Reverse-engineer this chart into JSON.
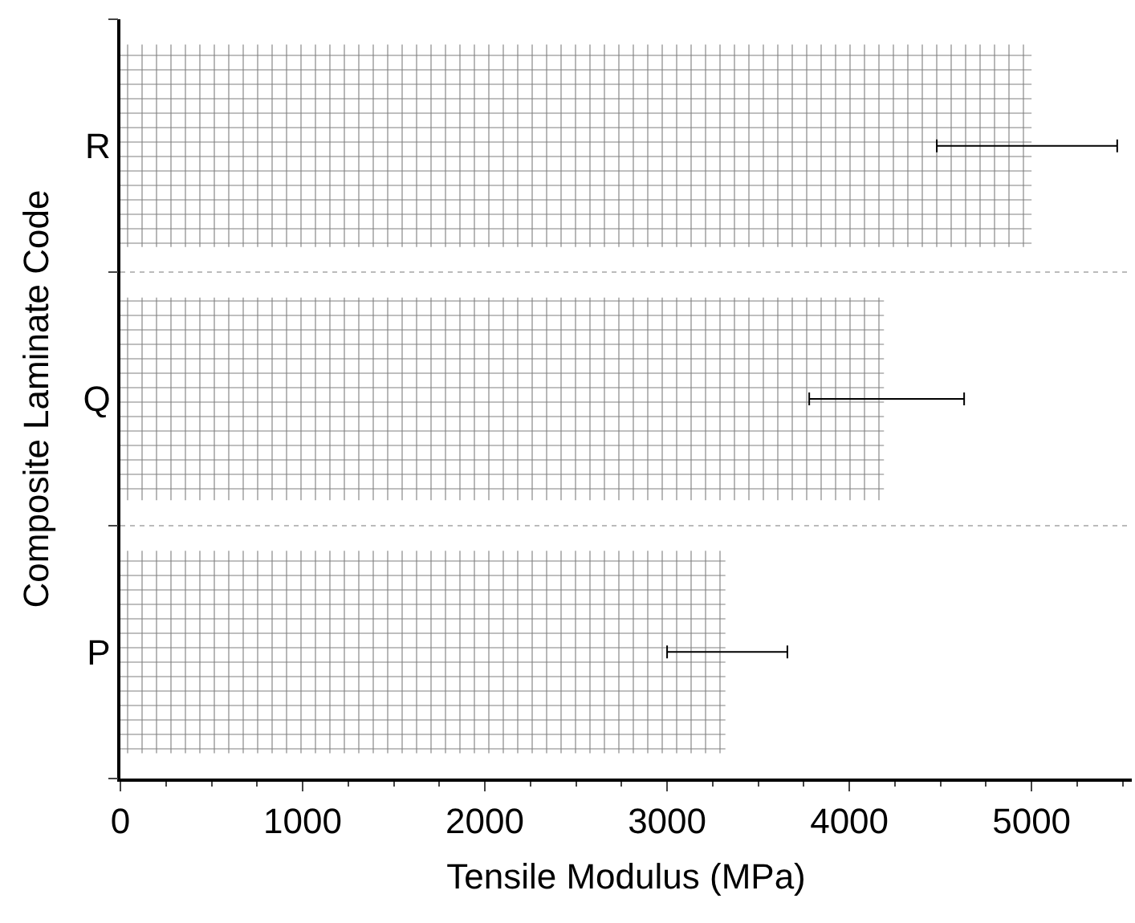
{
  "chart_data": {
    "type": "bar",
    "orientation": "horizontal",
    "categories": [
      "R",
      "Q",
      "P"
    ],
    "values": [
      5000,
      4190,
      3320
    ],
    "errors": [
      [
        4480,
        5470
      ],
      [
        3780,
        4630
      ],
      [
        3000,
        3660
      ]
    ],
    "color": "#000000",
    "xlim": [
      0,
      5550
    ],
    "xticks": [
      0,
      1000,
      2000,
      3000,
      4000,
      5000
    ],
    "xlabel": "Tensile Modulus (MPa)",
    "ylabel": "Composite Laminate Code",
    "grid": "y",
    "legend": false
  }
}
